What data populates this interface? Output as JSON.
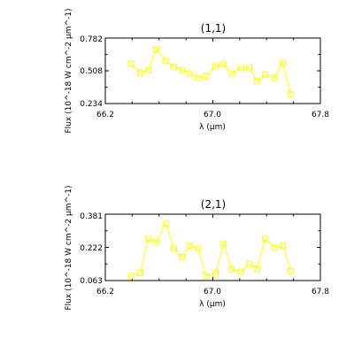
{
  "chart_data": [
    {
      "type": "line",
      "title": "(1,1)",
      "xlabel": "λ (μm)",
      "ylabel": "Flux (10^-18 W cm^-2 μm^-1)",
      "xlim": [
        66.2,
        67.8
      ],
      "ylim": [
        0.234,
        0.782
      ],
      "xticks": [
        "66.2",
        "67.0",
        "67.8"
      ],
      "yticks": [
        "0.234",
        "0.508",
        "0.782"
      ],
      "grid": false,
      "series": [
        {
          "color": "#ffff00",
          "marker": "square",
          "x": [
            66.39,
            66.46,
            66.52,
            66.58,
            66.65,
            66.71,
            66.77,
            66.83,
            66.89,
            66.95,
            67.02,
            67.08,
            67.14,
            67.21,
            67.27,
            67.33,
            67.39,
            67.46,
            67.52,
            67.58
          ],
          "y": [
            0.565,
            0.49,
            0.515,
            0.69,
            0.59,
            0.54,
            0.515,
            0.485,
            0.45,
            0.46,
            0.545,
            0.565,
            0.485,
            0.53,
            0.53,
            0.42,
            0.475,
            0.45,
            0.575,
            0.31
          ]
        }
      ]
    },
    {
      "type": "line",
      "title": "(2,1)",
      "xlabel": "λ (μm)",
      "ylabel": "Flux (10^-18 W cm^-2 μm^-1)",
      "xlim": [
        66.2,
        67.8
      ],
      "ylim": [
        0.063,
        0.381
      ],
      "xticks": [
        "66.2",
        "67.0",
        "67.8"
      ],
      "yticks": [
        "0.063",
        "0.222",
        "0.381"
      ],
      "grid": false,
      "series": [
        {
          "color": "#ffff00",
          "marker": "square",
          "x": [
            66.39,
            66.46,
            66.52,
            66.58,
            66.65,
            66.71,
            66.77,
            66.83,
            66.89,
            66.95,
            67.02,
            67.08,
            67.14,
            67.21,
            67.27,
            67.33,
            67.39,
            67.46,
            67.52,
            67.58
          ],
          "y": [
            0.085,
            0.1,
            0.262,
            0.248,
            0.335,
            0.216,
            0.175,
            0.23,
            0.216,
            0.086,
            0.097,
            0.24,
            0.116,
            0.105,
            0.14,
            0.12,
            0.262,
            0.22,
            0.229,
            0.108
          ]
        }
      ]
    }
  ]
}
